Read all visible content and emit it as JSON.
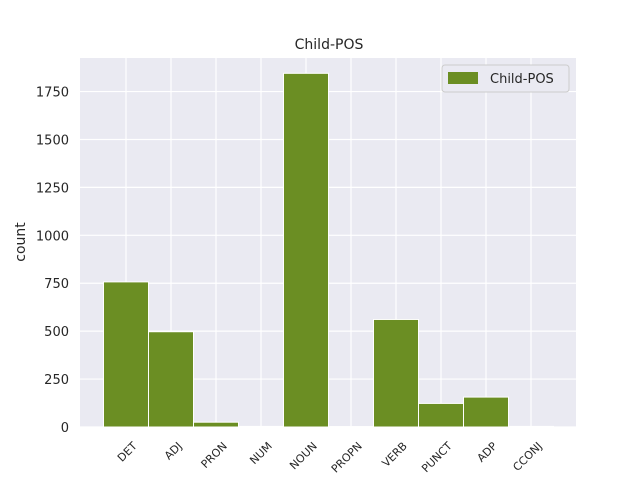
{
  "colors": {
    "plot_background": "#eaeaf2",
    "grid": "#ffffff",
    "bar": "#6b8e23",
    "legend_border": "#cccccc"
  },
  "chart_data": {
    "type": "bar",
    "title": "Child-POS",
    "xlabel": "",
    "ylabel": "count",
    "categories": [
      "DET",
      "ADJ",
      "PRON",
      "NUM",
      "NOUN",
      "PROPN",
      "VERB",
      "PUNCT",
      "ADP",
      "CCONJ"
    ],
    "series": [
      {
        "name": "Child-POS",
        "values": [
          757,
          497,
          25,
          3,
          1845,
          2,
          561,
          123,
          156,
          3
        ]
      }
    ],
    "ylim": [
      0,
      1925
    ],
    "yticks": [
      0,
      250,
      500,
      750,
      1000,
      1250,
      1500,
      1750
    ],
    "grid": true,
    "legend": "top-right"
  }
}
